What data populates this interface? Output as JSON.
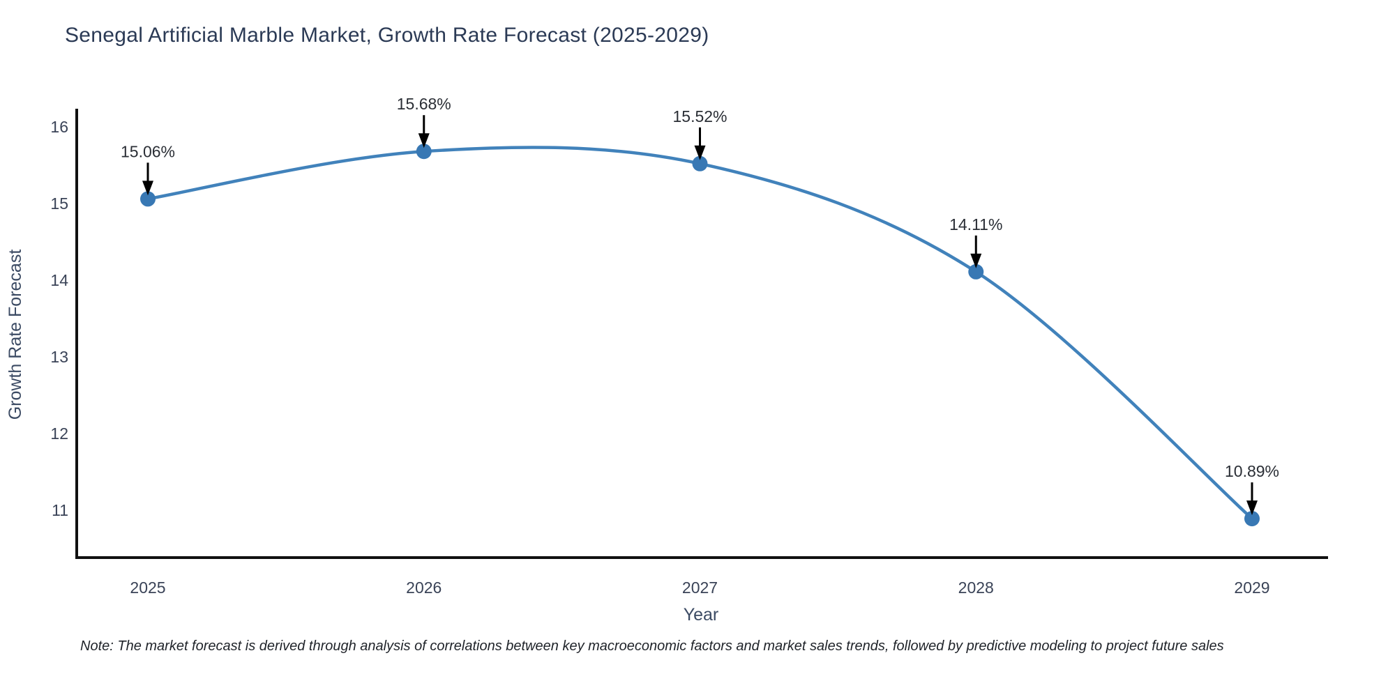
{
  "page": {
    "background": "#ffffff",
    "note": "Note: The market forecast is derived through analysis of correlations between key macroeconomic factors and market sales trends, followed by predictive modeling to project future sales"
  },
  "chart_data": {
    "type": "line",
    "title": "Senegal Artificial Marble Market, Growth Rate Forecast (2025-2029)",
    "xlabel": "Year",
    "ylabel": "Growth Rate Forecast",
    "categories": [
      "2025",
      "2026",
      "2027",
      "2028",
      "2029"
    ],
    "values": [
      15.06,
      15.68,
      15.52,
      14.11,
      10.89
    ],
    "point_labels": [
      "15.06%",
      "15.68%",
      "15.52%",
      "14.11%",
      "10.89%"
    ],
    "yticks": [
      11,
      12,
      13,
      14,
      15,
      16
    ],
    "ylim": [
      10.4,
      16.2
    ],
    "grid": false,
    "legend": "none",
    "annotation_style": "value label with downward black arrow to each point",
    "colors": {
      "line": "#4182bb",
      "marker": "#3878b4",
      "annotation_text": "#2a2e35",
      "arrow": "#000000",
      "axis": "#111111",
      "tick_label": "#3a4357",
      "axis_title": "#3b4a63",
      "title": "#2b3a55"
    }
  }
}
